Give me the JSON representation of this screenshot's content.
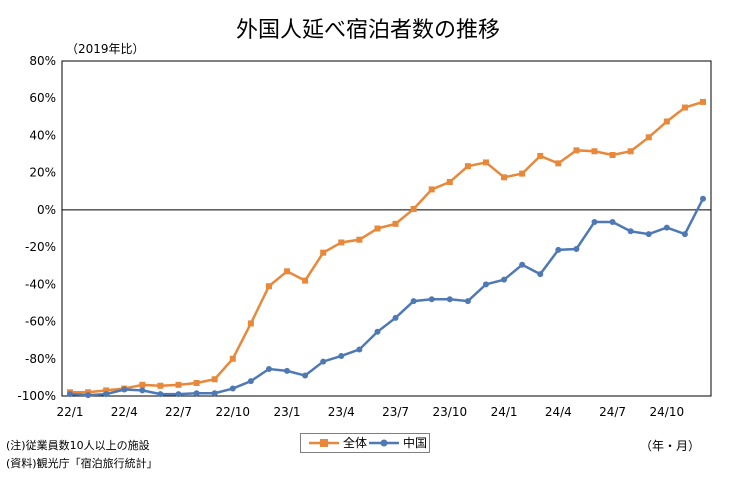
{
  "chart_data": {
    "type": "line",
    "title": "外国人延べ宿泊者数の推移",
    "unit_label": "（2019年比）",
    "period_label": "（年・月）",
    "ylim": [
      -100,
      80
    ],
    "y_ticks": [
      "80%",
      "60%",
      "40%",
      "20%",
      "0%",
      "-20%",
      "-40%",
      "-60%",
      "-80%",
      "-100%"
    ],
    "y_tick_values": [
      80,
      60,
      40,
      20,
      0,
      -20,
      -40,
      -60,
      -80,
      -100
    ],
    "x_tick_labels": [
      "22/1",
      "22/4",
      "22/7",
      "22/10",
      "23/1",
      "23/4",
      "23/7",
      "23/10",
      "24/1",
      "24/4",
      "24/7",
      "24/10"
    ],
    "x": [
      "22/1",
      "22/2",
      "22/3",
      "22/4",
      "22/5",
      "22/6",
      "22/7",
      "22/8",
      "22/9",
      "22/10",
      "22/11",
      "22/12",
      "23/1",
      "23/2",
      "23/3",
      "23/4",
      "23/5",
      "23/6",
      "23/7",
      "23/8",
      "23/9",
      "23/10",
      "23/11",
      "23/12",
      "24/1",
      "24/2",
      "24/3",
      "24/4",
      "24/5",
      "24/6",
      "24/7",
      "24/8",
      "24/9",
      "24/10",
      "24/11",
      "24/12"
    ],
    "grid": false,
    "legend": "bottom",
    "series": [
      {
        "name": "全体",
        "color": "#e8883a",
        "marker": "square",
        "values": [
          -98,
          -98,
          -97,
          -96,
          -94,
          -94.5,
          -94,
          -93,
          -91,
          -80,
          -61,
          -41,
          -33,
          -38,
          -23,
          -17.5,
          -16,
          -10,
          -7.5,
          0.5,
          11,
          15,
          23.5,
          25.5,
          17.5,
          19.5,
          29,
          25,
          32,
          31.5,
          29.5,
          31.5,
          39,
          47.5,
          55,
          58
        ]
      },
      {
        "name": "中国",
        "color": "#4f79b5",
        "marker": "circle",
        "values": [
          -99,
          -99.5,
          -99,
          -96.5,
          -97,
          -99,
          -99,
          -98.5,
          -98.5,
          -96,
          -92,
          -85.5,
          -86.5,
          -89,
          -81.5,
          -78.5,
          -75,
          -65.5,
          -58,
          -49,
          -48,
          -48,
          -49,
          -40,
          -37.5,
          -29.5,
          -34.5,
          -21.5,
          -21,
          -6.5,
          -6.5,
          -11.5,
          -13,
          -9.5,
          -13,
          6
        ]
      }
    ]
  },
  "notes": {
    "note1": "(注)従業員数10人以上の施設",
    "note2": "(資料)観光庁「宿泊旅行統計」"
  }
}
